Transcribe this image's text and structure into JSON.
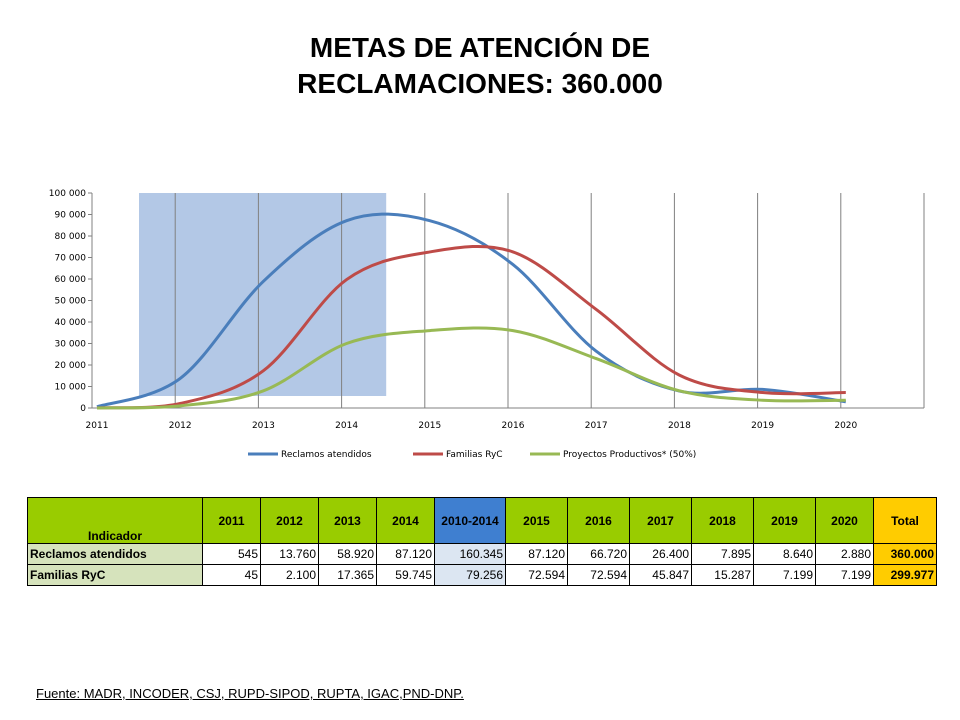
{
  "title_line1": "METAS DE ATENCIÓN DE",
  "title_line2": "RECLAMACIONES:  360.000",
  "chart_data": {
    "type": "line",
    "x": [
      "2011",
      "2012",
      "2013",
      "2014",
      "2015",
      "2016",
      "2017",
      "2018",
      "2019",
      "2020"
    ],
    "ylim": [
      0,
      100000
    ],
    "yticks": [
      "0",
      "10 000",
      "20 000",
      "30 000",
      "40 000",
      "50 000",
      "60 000",
      "70 000",
      "80 000",
      "90 000",
      "100 000"
    ],
    "grid": "vertical",
    "shaded_range": [
      "2011",
      "2014"
    ],
    "legend_position": "bottom",
    "series": [
      {
        "name": "Reclamos atendidos",
        "color": "#4a7ebb",
        "values": [
          545,
          13760,
          58920,
          87120,
          87120,
          66720,
          26400,
          7895,
          8640,
          2880
        ]
      },
      {
        "name": "Familias RyC",
        "color": "#be4b48",
        "values": [
          45,
          2100,
          17365,
          59745,
          72594,
          72594,
          45847,
          15287,
          7199,
          7199
        ]
      },
      {
        "name": "Proyectos Productivos* (50%)",
        "color": "#98b954",
        "values": [
          0,
          1000,
          8000,
          30000,
          36000,
          36000,
          23000,
          8000,
          3600,
          3600
        ]
      }
    ]
  },
  "table": {
    "indicator_header": "Indicador",
    "headers": [
      "2011",
      "2012",
      "2013",
      "2014",
      "2010-2014",
      "2015",
      "2016",
      "2017",
      "2018",
      "2019",
      "2020",
      "Total"
    ],
    "rows": [
      {
        "label": "Reclamos atendidos",
        "cells": [
          "545",
          "13.760",
          "58.920",
          "87.120",
          "160.345",
          "87.120",
          "66.720",
          "26.400",
          "7.895",
          "8.640",
          "2.880",
          "360.000"
        ]
      },
      {
        "label": "Familias RyC",
        "cells": [
          "45",
          "2.100",
          "17.365",
          "59.745",
          "79.256",
          "72.594",
          "72.594",
          "45.847",
          "15.287",
          "7.199",
          "7.199",
          "299.977"
        ]
      }
    ]
  },
  "footer": "Fuente: MADR, INCODER, CSJ, RUPD-SIPOD, RUPTA, IGAC,PND-DNP."
}
